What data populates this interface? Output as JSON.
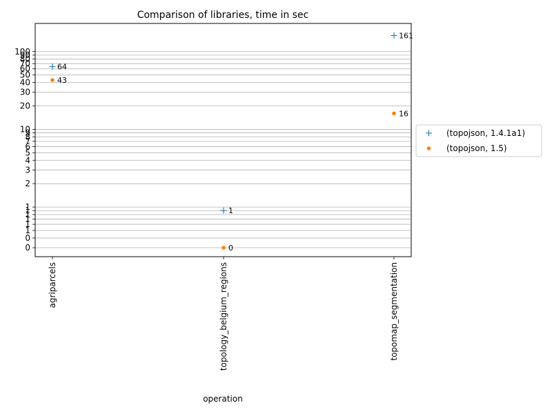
{
  "chart_data": {
    "type": "scatter",
    "title": "Comparison of libraries, time in sec",
    "xlabel": "operation",
    "ylabel": "",
    "yscale": "log",
    "grid": "horizontal",
    "legend_position": "right",
    "categories": [
      "agriparcels",
      "topology_belgium_regions",
      "topomap_segmentation"
    ],
    "series": [
      {
        "name": "(topojson, 1.4.1a1)",
        "marker": "+",
        "color": "#1f77b4",
        "values": [
          64,
          0.9,
          161
        ],
        "labels": [
          "64",
          "1",
          "161"
        ]
      },
      {
        "name": "(topojson, 1.5)",
        "marker": "dot",
        "color": "#ff7f0e",
        "values": [
          43,
          0.3,
          16
        ],
        "labels": [
          "43",
          "0",
          "16"
        ]
      }
    ],
    "yticks": [
      {
        "value": 0.3,
        "label": "0"
      },
      {
        "value": 0.4,
        "label": "0"
      },
      {
        "value": 0.5,
        "label": "1"
      },
      {
        "value": 0.6,
        "label": "1"
      },
      {
        "value": 0.7,
        "label": "1"
      },
      {
        "value": 0.8,
        "label": "1"
      },
      {
        "value": 0.9,
        "label": "1"
      },
      {
        "value": 1,
        "label": "1"
      },
      {
        "value": 2,
        "label": "2"
      },
      {
        "value": 3,
        "label": "3"
      },
      {
        "value": 4,
        "label": "4"
      },
      {
        "value": 5,
        "label": "5"
      },
      {
        "value": 6,
        "label": "6"
      },
      {
        "value": 7,
        "label": "7"
      },
      {
        "value": 8,
        "label": "8"
      },
      {
        "value": 9,
        "label": "9"
      },
      {
        "value": 10,
        "label": "10"
      },
      {
        "value": 20,
        "label": "20"
      },
      {
        "value": 30,
        "label": "30"
      },
      {
        "value": 40,
        "label": "40"
      },
      {
        "value": 50,
        "label": "50"
      },
      {
        "value": 60,
        "label": "60"
      },
      {
        "value": 70,
        "label": "70"
      },
      {
        "value": 80,
        "label": "80"
      },
      {
        "value": 90,
        "label": "90"
      },
      {
        "value": 100,
        "label": "100"
      }
    ],
    "ylim": [
      0.23,
      230
    ]
  }
}
